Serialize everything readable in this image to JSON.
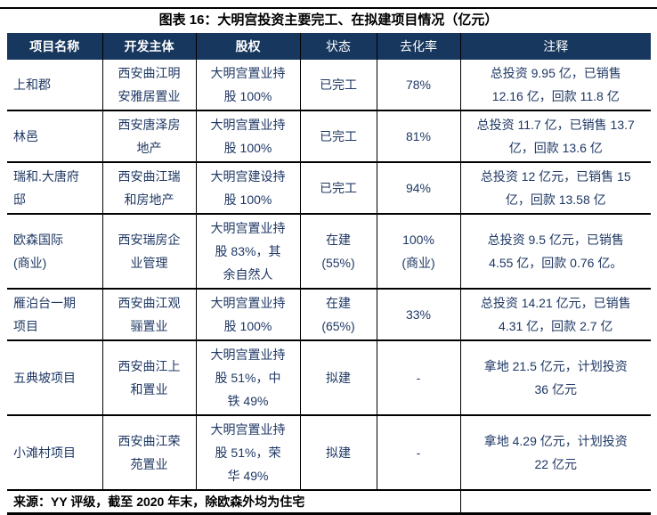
{
  "title": "图表 16：大明宫投资主要完工、在拟建项目情况（亿元）",
  "table": {
    "headers": [
      "项目名称",
      "开发主体",
      "股权",
      "状态",
      "去化率",
      "注释"
    ],
    "rows": [
      {
        "name": "上和郡",
        "developer": "西安曲江明\n安雅居置业",
        "equity": "大明宫置业持\n股 100%",
        "status": "已完工",
        "rate": "78%",
        "note": "总投资 9.95 亿，已销售\n12.16 亿，回款 11.8 亿"
      },
      {
        "name": "林邑",
        "developer": "西安唐泽房\n地产",
        "equity": "大明宫置业持\n股 100%",
        "status": "已完工",
        "rate": "81%",
        "note": "总投资 11.7 亿，已销售 13.7\n亿，回款 13.6 亿"
      },
      {
        "name": "瑞和.大唐府\n邸",
        "developer": "西安曲江瑞\n和房地产",
        "equity": "大明宫建设持\n股 100%",
        "status": "已完工",
        "rate": "94%",
        "note": "总投资 12 亿元，已销售 15\n亿，回款 13.58 亿"
      },
      {
        "name": "欧森国际\n(商业)",
        "developer": "西安瑞房企\n业管理",
        "equity": "大明宫置业持\n股 83%，其\n余自然人",
        "status": "在建\n(55%)",
        "rate": "100%\n(商业)",
        "note": "总投资 9.5 亿元，已销售\n4.55 亿，回款 0.76 亿。"
      },
      {
        "name": "雁泊台一期\n项目",
        "developer": "西安曲江观\n骊置业",
        "equity": "大明宫置业持\n股 100%",
        "status": "在建\n(65%)",
        "rate": "33%",
        "note": "总投资 14.21 亿元，已销售\n4.31 亿，回款 2.7 亿"
      },
      {
        "name": "五典坡项目",
        "developer": "西安曲江上\n和置业",
        "equity": "大明宫置业持\n股 51%，中\n铁 49%",
        "status": "拟建",
        "rate": "-",
        "note": "拿地 21.5 亿元，计划投资\n36 亿元"
      },
      {
        "name": "小滩村项目",
        "developer": "西安曲江荣\n苑置业",
        "equity": "大明宫置业持\n股 51%，荣\n华 49%",
        "status": "拟建",
        "rate": "-",
        "note": "拿地 4.29 亿元，计划投资\n22 亿元"
      }
    ],
    "footer": "来源：YY 评级，截至 2020 年末，除欧森外均为住宅"
  },
  "colors": {
    "header_bg": "#17375E",
    "body_text": "#1F3864",
    "border": "#000000"
  }
}
